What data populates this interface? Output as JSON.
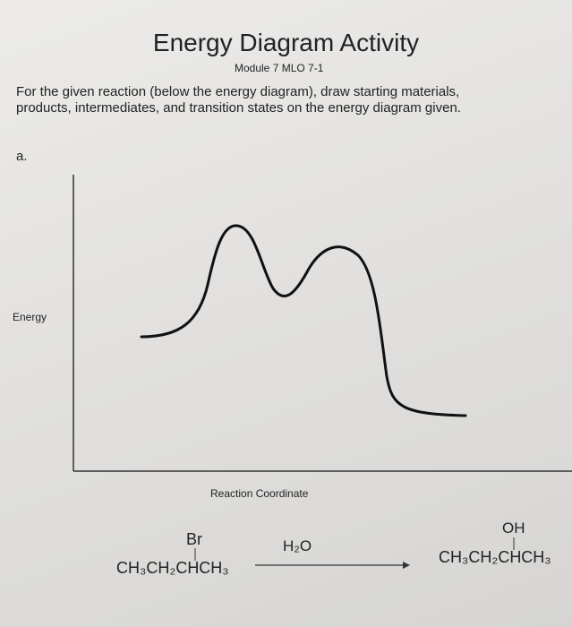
{
  "header": {
    "title": "Energy Diagram Activity",
    "subtitle": "Module 7 MLO 7-1"
  },
  "instructions": [
    "For the given reaction (below the energy diagram), draw starting materials,",
    "products, intermediates, and transition states on the energy diagram given."
  ],
  "part": "a.",
  "diagram": {
    "y_label": "Energy",
    "x_label": "Reaction Coordinate"
  },
  "reaction": {
    "reactant_substituent": "Br",
    "reactant": "CH₃CH₂CHCH₃",
    "reagent": "H₂O",
    "product_substituent": "OH",
    "product": "CH₃CH₂CHCH₃"
  }
}
